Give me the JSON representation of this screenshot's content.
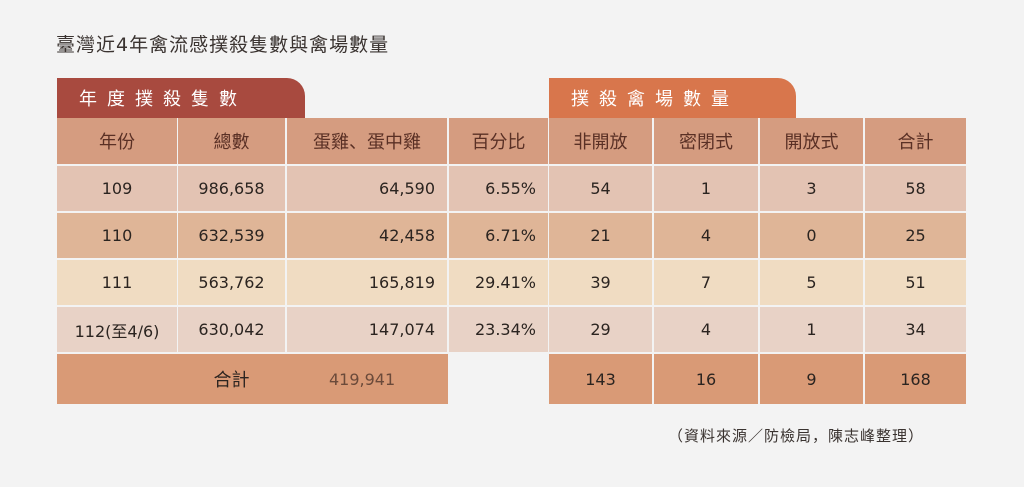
{
  "title": "臺灣近4年禽流感撲殺隻數與禽場數量",
  "tabs": {
    "left": "年度撲殺隻數",
    "right": "撲殺禽場數量"
  },
  "headers": [
    "年份",
    "總數",
    "蛋雞、蛋中雞",
    "百分比",
    "非開放",
    "密閉式",
    "開放式",
    "合計"
  ],
  "rows": [
    [
      "109",
      "986,658",
      "64,590",
      "6.55%",
      "54",
      "1",
      "3",
      "58"
    ],
    [
      "110",
      "632,539",
      "42,458",
      "6.71%",
      "21",
      "4",
      "0",
      "25"
    ],
    [
      "111",
      "563,762",
      "165,819",
      "29.41%",
      "39",
      "7",
      "5",
      "51"
    ],
    [
      "112(至4/6)",
      "630,042",
      "147,074",
      "23.34%",
      "29",
      "4",
      "1",
      "34"
    ]
  ],
  "total": {
    "label": "合計",
    "layers": "419,941",
    "non_open": "143",
    "closed": "16",
    "open": "9",
    "sum": "168"
  },
  "source": "（資料來源／防檢局，陳志峰整理）",
  "colors": {
    "tab_left": "#a84a3f",
    "tab_right": "#d8764c",
    "header": "#d59c80",
    "row_colors": [
      "#e3c3b3",
      "#dfb597",
      "#f0dcc2",
      "#e8d2c6"
    ],
    "total_row": "#d99a76"
  }
}
